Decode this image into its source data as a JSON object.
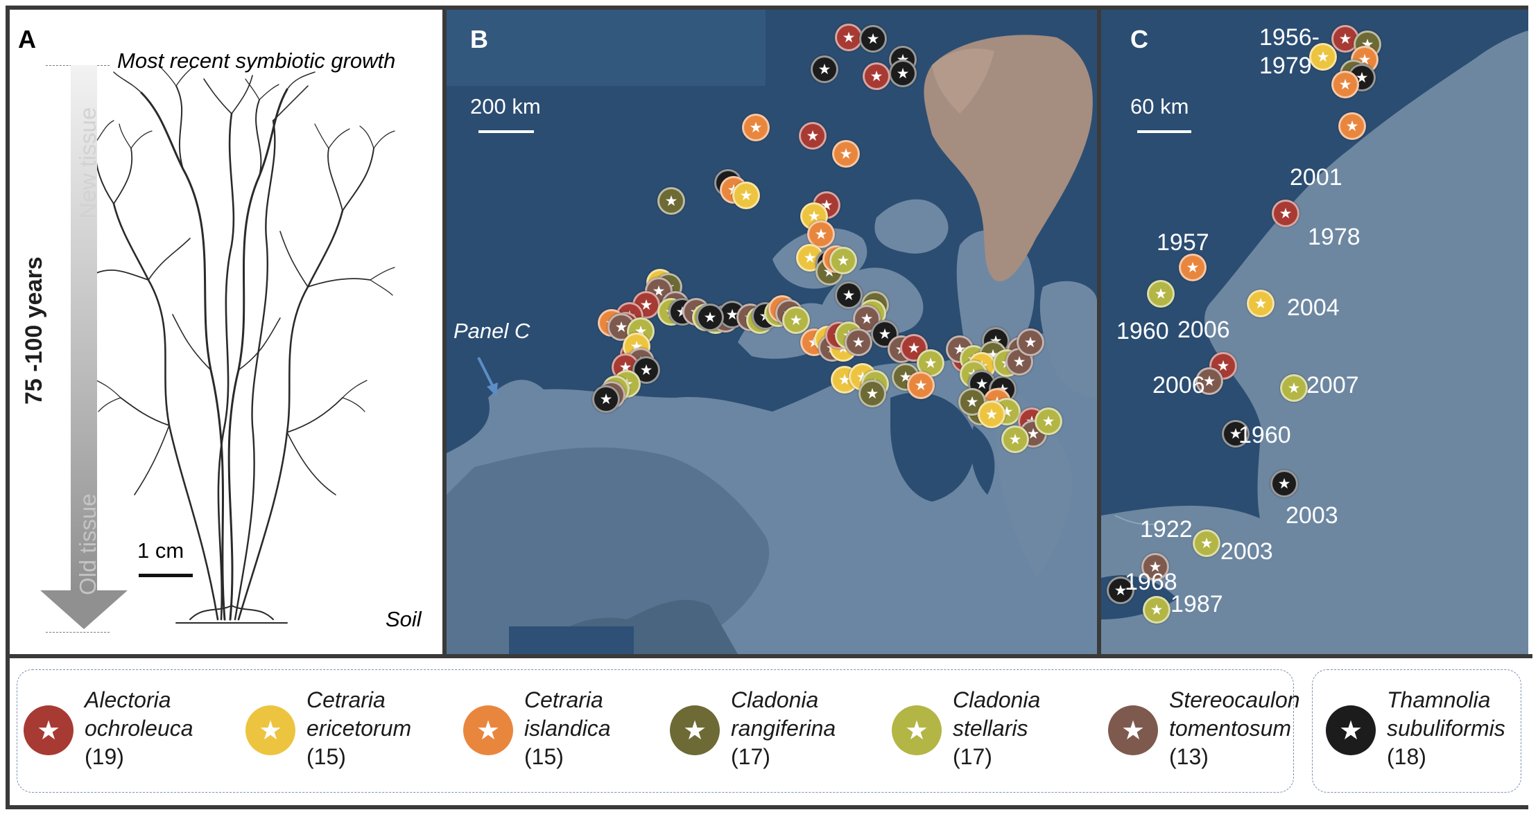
{
  "panels": {
    "a": {
      "letter": "A",
      "top_label": "Most recent symbiotic growth",
      "bottom_label": "Soil",
      "new_tissue": "New tissue",
      "old_tissue": "Old tissue",
      "age_range": "75 -100 years",
      "scale_label": "1 cm"
    },
    "b": {
      "letter": "B",
      "scale_label": "200 km",
      "callout": "Panel C"
    },
    "c": {
      "letter": "C",
      "scale_label": "60 km",
      "year_labels": [
        "1956-\n1979",
        "2001",
        "1978",
        "1957",
        "1960",
        "2004",
        "2006",
        "2006",
        "2007",
        "1960",
        "2003",
        "1922",
        "2003",
        "1968",
        "1987"
      ]
    }
  },
  "species": [
    {
      "key": "ao",
      "name_line1": "Alectoria",
      "name_line2": "ochroleuca",
      "count": "(19)",
      "color": "#a83a34"
    },
    {
      "key": "ce",
      "name_line1": "Cetraria",
      "name_line2": "ericetorum",
      "count": "(15)",
      "color": "#edc43f"
    },
    {
      "key": "ci",
      "name_line1": "Cetraria",
      "name_line2": "islandica",
      "count": "(15)",
      "color": "#e9863e"
    },
    {
      "key": "cr",
      "name_line1": "Cladonia",
      "name_line2": "rangiferina",
      "count": "(17)",
      "color": "#6e6a35"
    },
    {
      "key": "cs",
      "name_line1": "Cladonia",
      "name_line2": "stellaris",
      "count": "(17)",
      "color": "#b3b545"
    },
    {
      "key": "st",
      "name_line1": "Stereocaulon",
      "name_line2": "tomentosum",
      "count": "(13)",
      "color": "#7e5a4e"
    },
    {
      "key": "ts",
      "name_line1": "Thamnolia",
      "name_line2": "subuliformis",
      "count": "(18)",
      "color": "#1c1c1c"
    }
  ],
  "icons": {
    "marker": "star-icon",
    "glyph": "★"
  },
  "colors": {
    "ocean": "#2b4d72",
    "land": "#6e88a3",
    "border": "#3a3a3a"
  }
}
